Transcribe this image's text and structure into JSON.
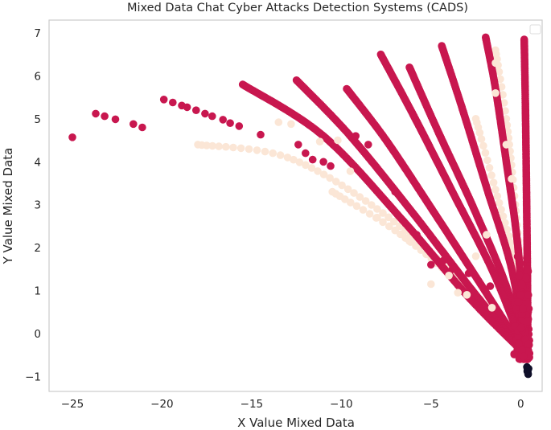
{
  "chart_data": {
    "type": "scatter",
    "title": "Mixed Data Chat Cyber Attacks Detection Systems (CADS)",
    "xlabel": "X Value Mixed Data",
    "ylabel": "Y Value Mixed Data",
    "xlim": [
      -26.3,
      1.2
    ],
    "ylim": [
      -1.35,
      7.3
    ],
    "x_ticks": [
      -25,
      -20,
      -15,
      -10,
      -5,
      0
    ],
    "x_tick_labels": [
      "−25",
      "−20",
      "−15",
      "−10",
      "−5",
      "0"
    ],
    "y_ticks": [
      -1,
      0,
      1,
      2,
      3,
      4,
      5,
      6,
      7
    ],
    "y_tick_labels": [
      "−1",
      "0",
      "1",
      "2",
      "3",
      "4",
      "5",
      "6",
      "7"
    ],
    "grid": false,
    "legend": {
      "placement": "top-right",
      "entries": []
    },
    "colors": {
      "crimson": "#c8174f",
      "peach": "#fbe6d6",
      "dark": "#0f0f29",
      "spine": "#cccccc"
    },
    "arcs": [
      {
        "color": "crimson",
        "points": [
          [
            0.2,
            6.85
          ],
          [
            0.27,
            5.2
          ],
          [
            0.33,
            3.2
          ],
          [
            0.38,
            1.2
          ],
          [
            0.4,
            -0.4
          ]
        ]
      },
      {
        "color": "crimson",
        "points": [
          [
            -1.95,
            6.9
          ],
          [
            -1.4,
            5.7
          ],
          [
            -0.8,
            4.0
          ],
          [
            -0.15,
            2.0
          ],
          [
            0.3,
            -0.5
          ]
        ]
      },
      {
        "color": "crimson",
        "points": [
          [
            -4.4,
            6.7
          ],
          [
            -3.3,
            5.3
          ],
          [
            -1.9,
            3.4
          ],
          [
            -0.5,
            1.5
          ],
          [
            0.3,
            -0.5
          ]
        ]
      },
      {
        "color": "crimson",
        "points": [
          [
            -6.2,
            6.2
          ],
          [
            -4.6,
            4.7
          ],
          [
            -2.6,
            2.9
          ],
          [
            -0.8,
            1.1
          ],
          [
            0.3,
            -0.5
          ]
        ]
      },
      {
        "color": "crimson",
        "points": [
          [
            -7.8,
            6.5
          ],
          [
            -6.0,
            5.1
          ],
          [
            -3.8,
            3.3
          ],
          [
            -1.5,
            1.4
          ],
          [
            0.3,
            -0.5
          ]
        ]
      },
      {
        "color": "crimson",
        "points": [
          [
            -9.7,
            5.7
          ],
          [
            -7.5,
            4.5
          ],
          [
            -4.8,
            2.8
          ],
          [
            -2.0,
            1.0
          ],
          [
            0.3,
            -0.5
          ]
        ]
      },
      {
        "color": "crimson",
        "points": [
          [
            -12.5,
            5.9
          ],
          [
            -9.5,
            4.6
          ],
          [
            -6.0,
            2.8
          ],
          [
            -2.5,
            0.9
          ],
          [
            0.3,
            -0.5
          ]
        ]
      },
      {
        "color": "crimson",
        "points": [
          [
            -15.5,
            5.8
          ],
          [
            -11.0,
            4.6
          ],
          [
            -6.5,
            2.6
          ],
          [
            -2.8,
            0.8
          ],
          [
            0.3,
            -0.5
          ]
        ]
      },
      {
        "color": "peach",
        "points": [
          [
            -18.0,
            4.4
          ],
          [
            -13.0,
            4.1
          ],
          [
            -8.0,
            2.9
          ],
          [
            -3.5,
            1.3
          ],
          [
            0.3,
            -0.3
          ]
        ]
      },
      {
        "color": "peach",
        "points": [
          [
            -10.5,
            3.3
          ],
          [
            -7.0,
            2.4
          ],
          [
            -3.5,
            1.2
          ],
          [
            0.3,
            -0.4
          ]
        ]
      },
      {
        "color": "peach",
        "points": [
          [
            -1.4,
            6.6
          ],
          [
            -0.8,
            5.0
          ],
          [
            -0.3,
            3.0
          ],
          [
            0.3,
            0.0
          ]
        ]
      },
      {
        "color": "peach",
        "points": [
          [
            -2.5,
            5.0
          ],
          [
            -1.3,
            3.2
          ],
          [
            -0.2,
            1.5
          ],
          [
            0.3,
            -0.2
          ]
        ]
      }
    ],
    "scattered_points": [
      {
        "color": "crimson",
        "points": [
          [
            -25.0,
            4.57
          ],
          [
            -23.7,
            5.12
          ],
          [
            -23.2,
            5.06
          ],
          [
            -22.6,
            4.99
          ],
          [
            -21.6,
            4.88
          ],
          [
            -21.1,
            4.8
          ]
        ]
      },
      {
        "color": "crimson",
        "points": [
          [
            -19.9,
            5.45
          ],
          [
            -19.4,
            5.38
          ],
          [
            -18.9,
            5.31
          ],
          [
            -18.6,
            5.27
          ],
          [
            -18.1,
            5.2
          ],
          [
            -17.6,
            5.12
          ],
          [
            -17.2,
            5.06
          ],
          [
            -16.6,
            4.98
          ],
          [
            -16.2,
            4.9
          ],
          [
            -15.7,
            4.83
          ],
          [
            -14.5,
            4.63
          ]
        ]
      },
      {
        "color": "crimson",
        "points": [
          [
            -12.4,
            4.4
          ],
          [
            -12.0,
            4.2
          ],
          [
            -11.6,
            4.05
          ],
          [
            -11.0,
            4.0
          ],
          [
            -10.6,
            3.9
          ],
          [
            -9.2,
            4.6
          ],
          [
            -8.5,
            4.4
          ],
          [
            -7.0,
            3.3
          ],
          [
            -5.8,
            2.3
          ],
          [
            -5.0,
            1.6
          ],
          [
            -4.3,
            1.7
          ],
          [
            -3.8,
            1.5
          ],
          [
            -2.9,
            1.4
          ],
          [
            -1.7,
            1.1
          ]
        ]
      },
      {
        "color": "peach",
        "points": [
          [
            -13.5,
            4.92
          ],
          [
            -12.8,
            4.88
          ],
          [
            -11.2,
            4.47
          ],
          [
            -10.2,
            4.5
          ],
          [
            -9.5,
            3.78
          ],
          [
            -8.0,
            2.7
          ],
          [
            -6.2,
            2.15
          ],
          [
            -5.0,
            1.15
          ],
          [
            -4.0,
            1.35
          ],
          [
            -3.5,
            0.95
          ],
          [
            -2.5,
            1.8
          ],
          [
            -1.4,
            6.3
          ],
          [
            -1.4,
            5.6
          ],
          [
            -0.8,
            4.4
          ],
          [
            -0.5,
            3.6
          ],
          [
            -1.9,
            2.3
          ],
          [
            -1.6,
            0.6
          ],
          [
            -3.0,
            0.9
          ]
        ]
      },
      {
        "color": "dark",
        "points": [
          [
            0.35,
            -0.78
          ],
          [
            0.38,
            -0.85
          ],
          [
            0.4,
            -0.9
          ],
          [
            0.42,
            -0.95
          ],
          [
            0.37,
            -0.88
          ],
          [
            0.44,
            -0.82
          ]
        ]
      }
    ]
  }
}
